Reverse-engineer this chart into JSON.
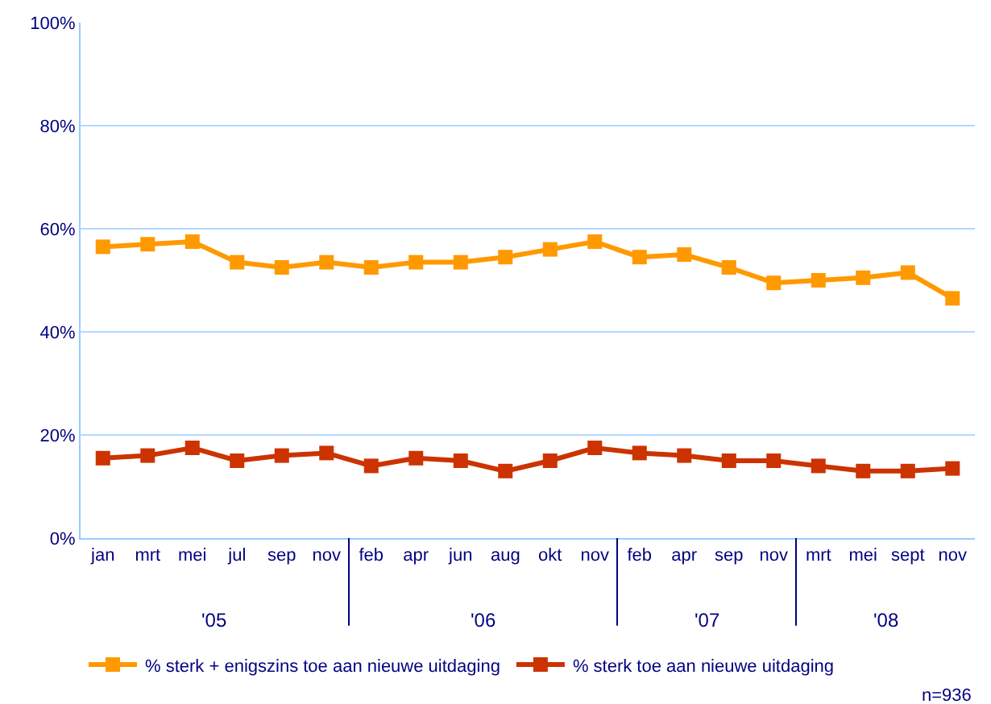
{
  "chart_data": {
    "type": "line",
    "categories": [
      "jan",
      "mrt",
      "mei",
      "jul",
      "sep",
      "nov",
      "feb",
      "apr",
      "jun",
      "aug",
      "okt",
      "nov",
      "feb",
      "apr",
      "sep",
      "nov",
      "mrt",
      "mei",
      "sept",
      "nov"
    ],
    "series": [
      {
        "name": "% sterk + enigszins toe aan nieuwe uitdaging",
        "color": "#ff9900",
        "values": [
          56.5,
          57,
          57.5,
          53.5,
          52.5,
          53.5,
          52.5,
          53.5,
          53.5,
          54.5,
          56,
          57.5,
          54.5,
          55,
          52.5,
          49.5,
          50,
          50.5,
          51.5,
          46.5
        ]
      },
      {
        "name": "% sterk toe aan nieuwe uitdaging",
        "color": "#cc3300",
        "values": [
          15.5,
          16,
          17.5,
          15,
          16,
          16.5,
          14,
          15.5,
          15,
          13,
          15,
          17.5,
          16.5,
          16,
          15,
          15,
          14,
          13,
          13,
          13.5
        ]
      }
    ],
    "ylim": [
      0,
      100
    ],
    "yticks": [
      {
        "value": 0,
        "label": "0%"
      },
      {
        "value": 20,
        "label": "20%"
      },
      {
        "value": 40,
        "label": "40%"
      },
      {
        "value": 60,
        "label": "60%"
      },
      {
        "value": 80,
        "label": "80%"
      },
      {
        "value": 100,
        "label": "100%"
      }
    ],
    "grid": "y",
    "legend": "bottom",
    "marker": "square",
    "line_style": "solid",
    "annotations": [
      "'05",
      "'06",
      "'07",
      "'08",
      "n=936"
    ]
  }
}
